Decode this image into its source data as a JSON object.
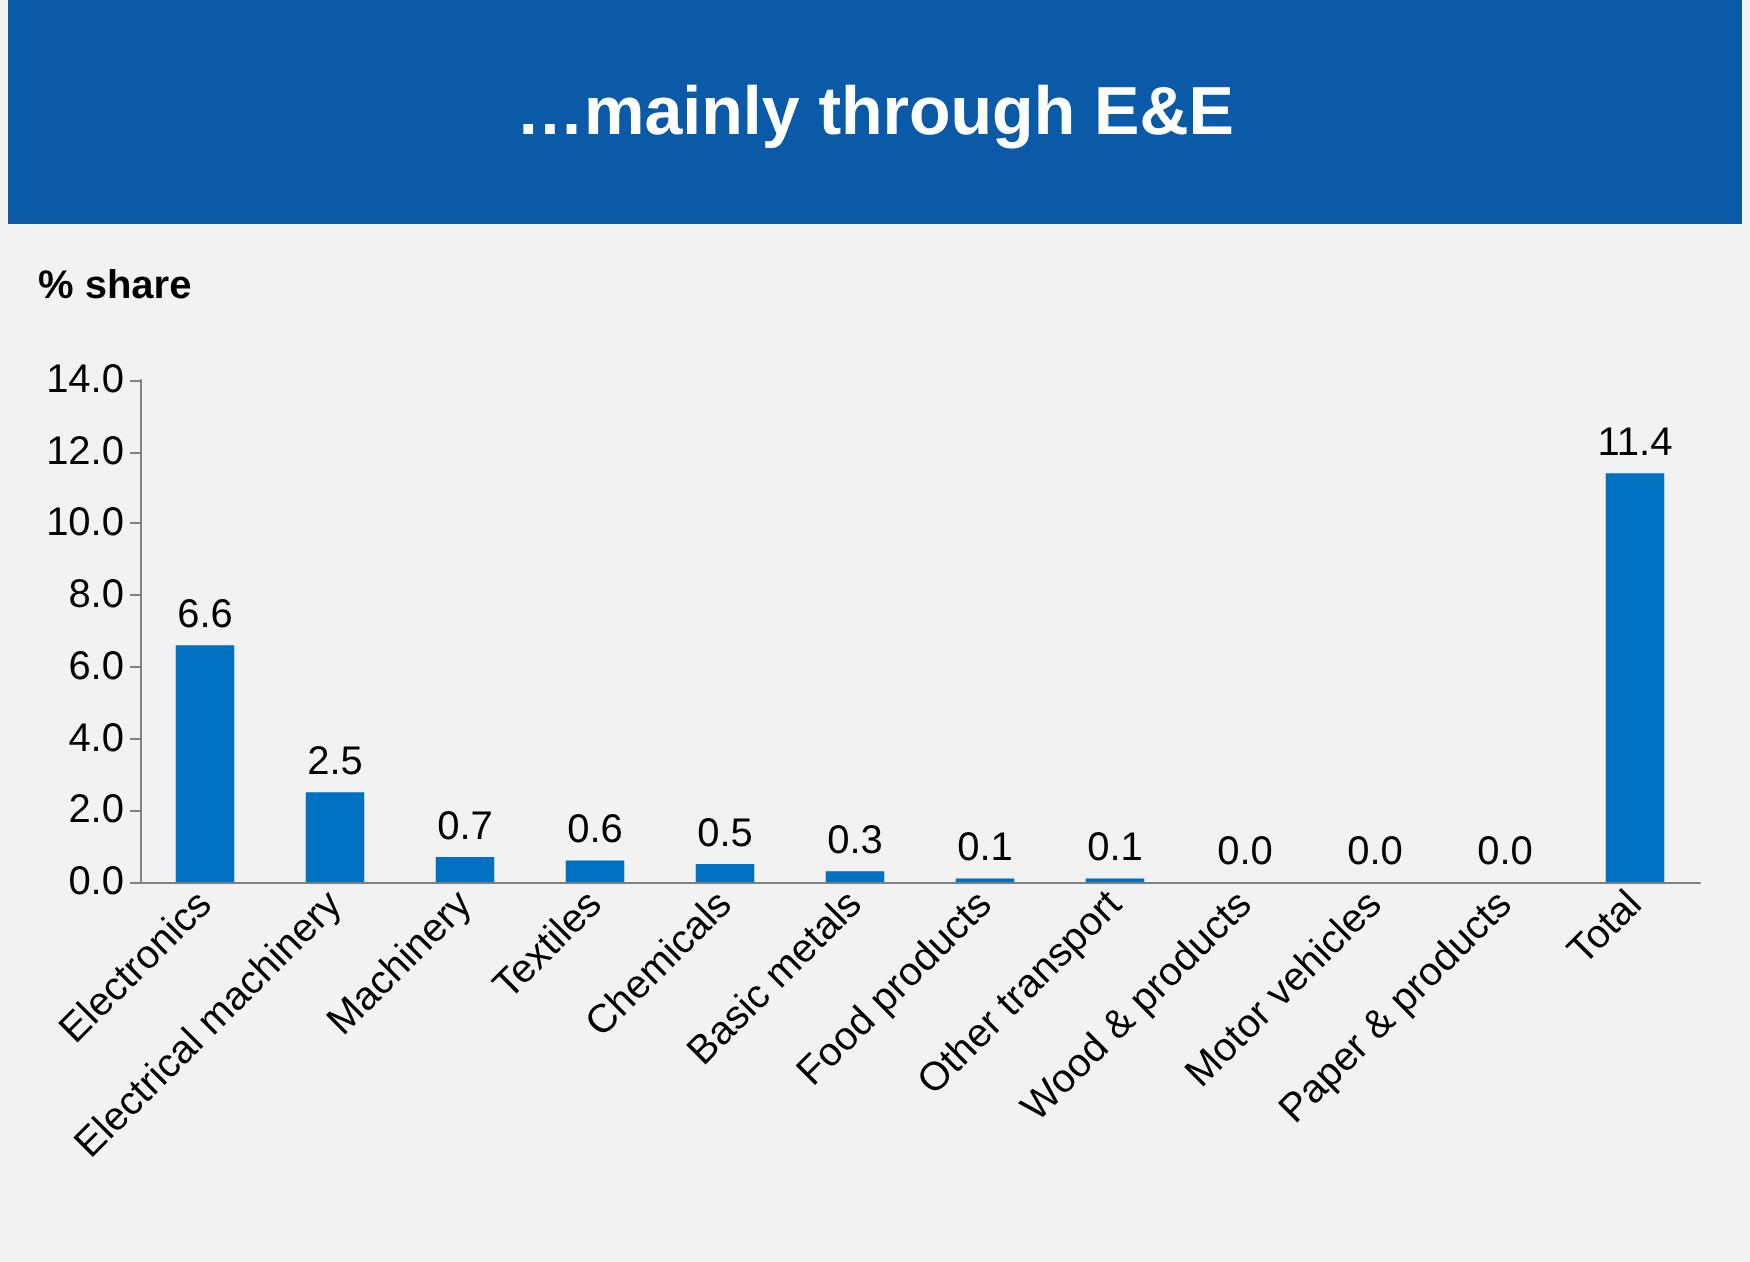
{
  "chart_data": {
    "type": "bar",
    "title": "…mainly through E&E",
    "ylabel": "% share",
    "categories": [
      "Electronics",
      "Electrical machinery",
      "Machinery",
      "Textiles",
      "Chemicals",
      "Basic metals",
      "Food products",
      "Other transport",
      "Wood & products",
      "Motor vehicles",
      "Paper & products",
      "Total"
    ],
    "values": [
      6.6,
      2.5,
      0.7,
      0.6,
      0.5,
      0.3,
      0.1,
      0.1,
      0.0,
      0.0,
      0.0,
      11.4
    ],
    "value_labels": [
      "6.6",
      "2.5",
      "0.7",
      "0.6",
      "0.5",
      "0.3",
      "0.1",
      "0.1",
      "0.0",
      "0.0",
      "0.0",
      "11.4"
    ],
    "colors": [
      "#0070c0",
      "#0070c0",
      "#0070c0",
      "#0070c0",
      "#0070c0",
      "#0070c0",
      "#0070c0",
      "#0070c0",
      "#0070c0",
      "#0070c0",
      "#0070c0",
      "#0070c0"
    ],
    "ylim": [
      0,
      14
    ],
    "yticks": [
      {
        "value": 0,
        "label": "0.0"
      },
      {
        "value": 2,
        "label": "2.0"
      },
      {
        "value": 4,
        "label": "4.0"
      },
      {
        "value": 6,
        "label": "6.0"
      },
      {
        "value": 8,
        "label": "8.0"
      },
      {
        "value": 10,
        "label": "10.0"
      },
      {
        "value": 12,
        "label": "12.0"
      },
      {
        "value": 14,
        "label": "14.0"
      }
    ],
    "grid": false
  }
}
